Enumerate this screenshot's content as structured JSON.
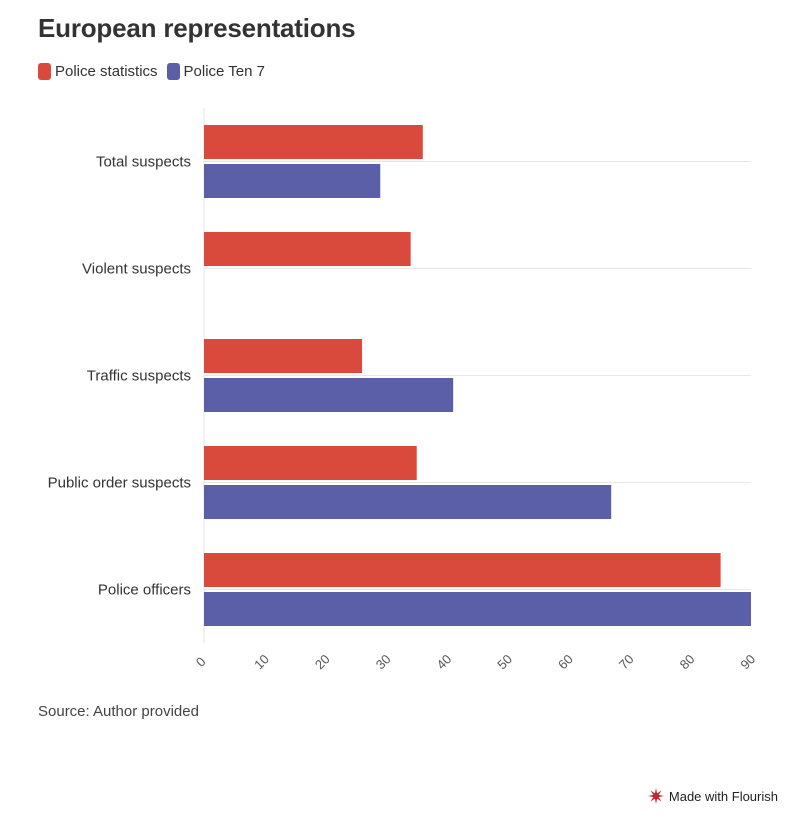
{
  "title": "European representations",
  "legend": [
    {
      "label": "Police statistics",
      "color": "#d94a3d"
    },
    {
      "label": "Police Ten 7",
      "color": "#5a5fa8"
    }
  ],
  "source": "Source: Author provided",
  "credit": "Made with Flourish",
  "chart_data": {
    "type": "bar",
    "orientation": "horizontal",
    "categories": [
      "Total suspects",
      "Violent suspects",
      "Traffic suspects",
      "Public order suspects",
      "Police officers"
    ],
    "series": [
      {
        "name": "Police statistics",
        "color": "#d94a3d",
        "values": [
          36,
          34,
          26,
          35,
          85
        ]
      },
      {
        "name": "Police Ten 7",
        "color": "#5a5fa8",
        "values": [
          29,
          null,
          41,
          67,
          90
        ]
      }
    ],
    "xlim": [
      0,
      90
    ],
    "xticks": [
      "0",
      "10",
      "20",
      "30",
      "40",
      "50",
      "60",
      "70",
      "80",
      "90"
    ],
    "grid": true,
    "legend_position": "top-left"
  }
}
